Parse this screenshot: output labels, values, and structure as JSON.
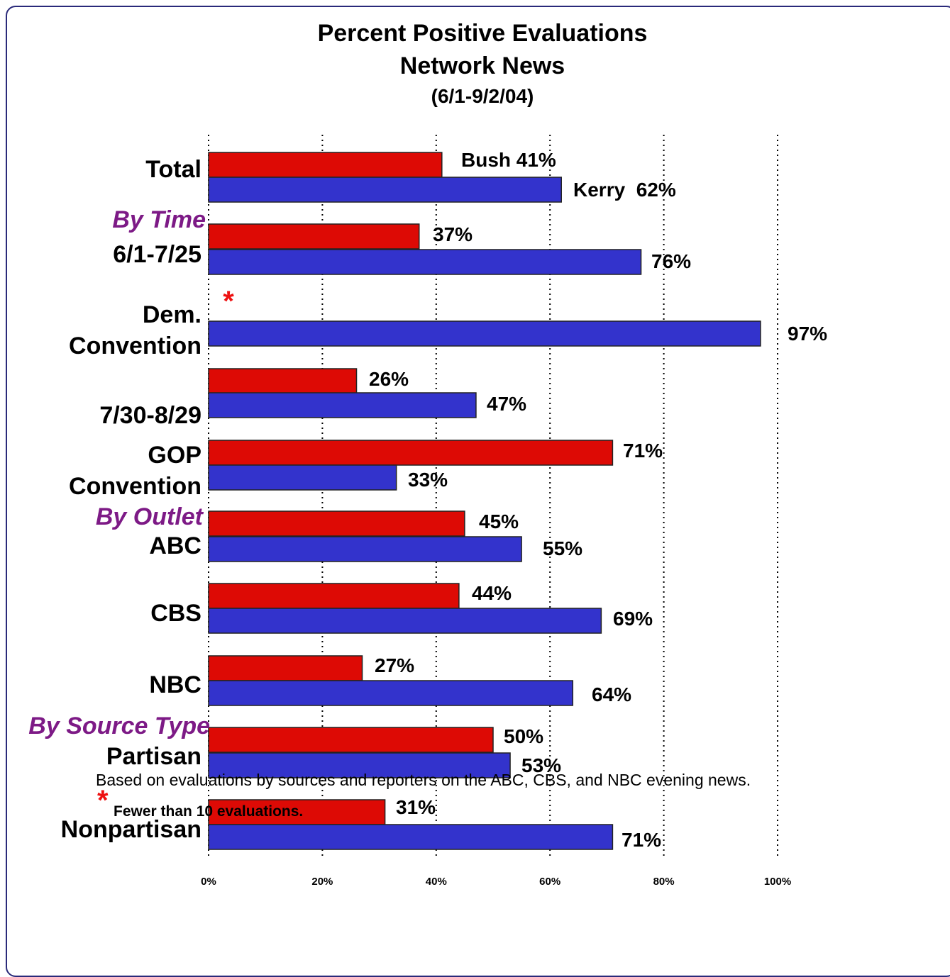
{
  "title": "Percent Positive Evaluations",
  "subtitle": "Network News",
  "date_range": "(6/1-9/2/04)",
  "colors": {
    "bush": "#dd0a05",
    "kerry": "#3333cc",
    "group_label": "#7d1a86",
    "asterisk": "#ee1111"
  },
  "footnote": "Based on evaluations by sources and reporters on the ABC, CBS, and NBC evening news.",
  "asterisk_symbol": "*",
  "asterisk_note": "Fewer than 10 evaluations.",
  "chart_data": {
    "type": "bar",
    "orientation": "horizontal",
    "grid": true,
    "xlim": [
      0,
      100
    ],
    "x_ticks": [
      "0%",
      "20%",
      "40%",
      "60%",
      "80%",
      "100%"
    ],
    "group_labels": [
      "By Time",
      "By Outlet",
      "By Source Type"
    ],
    "categories": [
      "Total",
      "6/1-7/25",
      "Dem. Convention",
      "7/30-8/29",
      "GOP Convention",
      "ABC",
      "CBS",
      "NBC",
      "Partisan",
      "Nonpartisan"
    ],
    "series": [
      {
        "name": "Bush",
        "values": [
          41,
          37,
          null,
          26,
          71,
          45,
          44,
          27,
          50,
          31
        ],
        "labels": [
          "Bush 41%",
          "37%",
          "*",
          "26%",
          "71%",
          "45%",
          "44%",
          "27%",
          "50%",
          "31%"
        ]
      },
      {
        "name": "Kerry",
        "values": [
          62,
          76,
          97,
          47,
          33,
          55,
          69,
          64,
          53,
          71
        ],
        "labels": [
          "Kerry  62%",
          "76%",
          "97%",
          "47%",
          "33%",
          "55%",
          "69%",
          "64%",
          "53%",
          "71%"
        ]
      }
    ]
  }
}
